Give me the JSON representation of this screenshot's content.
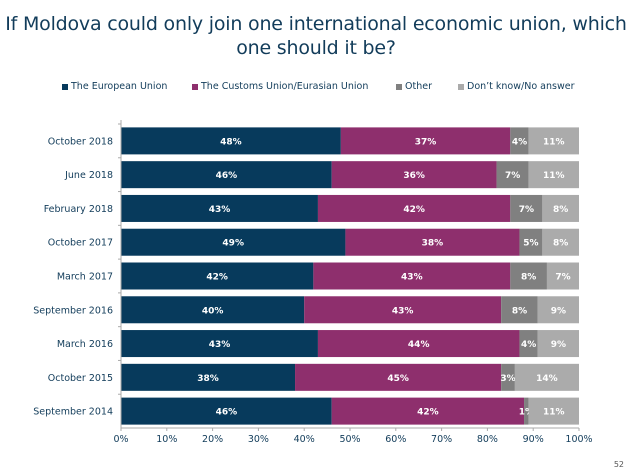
{
  "chart_data": {
    "type": "bar",
    "orientation": "horizontal",
    "stacked": true,
    "title": "If Moldova could only join one international economic union, which one should it be?",
    "title_lines": [
      "If Moldova could only join one international economic union, which",
      "one should it be?"
    ],
    "xlabel": "",
    "ylabel": "",
    "xlim": [
      0,
      100
    ],
    "x_ticks": [
      "0%",
      "10%",
      "20%",
      "30%",
      "40%",
      "50%",
      "60%",
      "70%",
      "80%",
      "90%",
      "100%"
    ],
    "grid": false,
    "legend_position": "top",
    "categories": [
      "October 2018",
      "June 2018",
      "February 2018",
      "October 2017",
      "March 2017",
      "September 2016",
      "March 2016",
      "October 2015",
      "September 2014"
    ],
    "series": [
      {
        "name": "The European Union",
        "color": "#073a5c",
        "values": [
          48,
          46,
          43,
          49,
          42,
          40,
          43,
          38,
          46
        ]
      },
      {
        "name": "The Customs Union/Eurasian Union",
        "color": "#8e2f6d",
        "values": [
          37,
          36,
          42,
          38,
          43,
          43,
          44,
          45,
          42
        ]
      },
      {
        "name": "Other",
        "color": "#808080",
        "values": [
          4,
          7,
          7,
          5,
          8,
          8,
          4,
          3,
          1
        ]
      },
      {
        "name": "Don't know/No answer",
        "color": "#ababab",
        "values": [
          11,
          11,
          8,
          8,
          7,
          9,
          9,
          14,
          11
        ]
      }
    ]
  },
  "legend": [
    {
      "label": "The European Union",
      "color": "#073a5c"
    },
    {
      "label": "The Customs Union/Eurasian Union",
      "color": "#8e2f6d"
    },
    {
      "label": "Other",
      "color": "#808080"
    },
    {
      "label": "Don’t know/No answer",
      "color": "#ababab"
    }
  ],
  "page_number": "52"
}
